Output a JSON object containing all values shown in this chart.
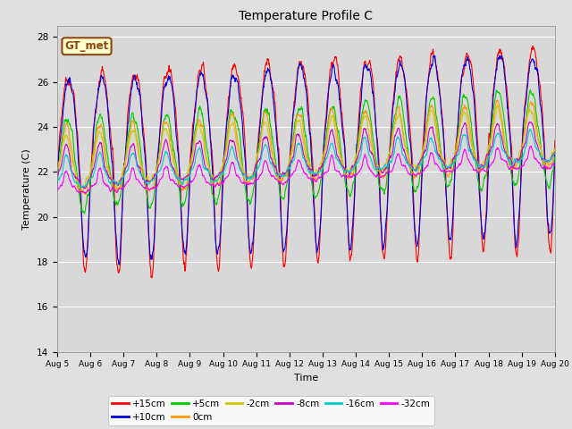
{
  "title": "Temperature Profile C",
  "xlabel": "Time",
  "ylabel": "Temperature (C)",
  "ylim": [
    14,
    28.5
  ],
  "xlim_days": [
    0,
    15
  ],
  "n_points": 1500,
  "background_color": "#e0e0e0",
  "plot_bg": "#d8d8d8",
  "series": [
    {
      "label": "+15cm",
      "color": "#ff0000",
      "amplitude": 4.5,
      "base": 21.8,
      "phase": 0.0,
      "noise": 0.5,
      "skew": 0.7
    },
    {
      "label": "+10cm",
      "color": "#0000dd",
      "amplitude": 4.0,
      "base": 22.0,
      "phase": 0.02,
      "noise": 0.45,
      "skew": 0.65
    },
    {
      "label": "+5cm",
      "color": "#00cc00",
      "amplitude": 2.0,
      "base": 22.3,
      "phase": 0.05,
      "noise": 0.35,
      "skew": 0.5
    },
    {
      "label": "0cm",
      "color": "#ff9900",
      "amplitude": 1.5,
      "base": 22.5,
      "phase": 0.08,
      "noise": 0.3,
      "skew": 0.4
    },
    {
      "label": "-2cm",
      "color": "#cccc00",
      "amplitude": 1.2,
      "base": 22.5,
      "phase": 0.1,
      "noise": 0.25,
      "skew": 0.35
    },
    {
      "label": "-8cm",
      "color": "#cc00cc",
      "amplitude": 0.9,
      "base": 22.2,
      "phase": 0.12,
      "noise": 0.2,
      "skew": 0.3
    },
    {
      "label": "-16cm",
      "color": "#00cccc",
      "amplitude": 0.7,
      "base": 22.0,
      "phase": 0.15,
      "noise": 0.18,
      "skew": 0.25
    },
    {
      "label": "-32cm",
      "color": "#ff00ff",
      "amplitude": 0.5,
      "base": 21.5,
      "phase": 0.18,
      "noise": 0.15,
      "skew": 0.2
    }
  ],
  "xtick_labels": [
    "Aug 5",
    "Aug 6",
    "Aug 7",
    "Aug 8",
    "Aug 9",
    "Aug 10",
    "Aug 11",
    "Aug 12",
    "Aug 13",
    "Aug 14",
    "Aug 15",
    "Aug 16",
    "Aug 17",
    "Aug 18",
    "Aug 19",
    "Aug 20"
  ],
  "xtick_positions": [
    0,
    1,
    2,
    3,
    4,
    5,
    6,
    7,
    8,
    9,
    10,
    11,
    12,
    13,
    14,
    15
  ],
  "ytick_labels": [
    "14",
    "16",
    "18",
    "20",
    "22",
    "24",
    "26",
    "28"
  ],
  "ytick_positions": [
    14,
    16,
    18,
    20,
    22,
    24,
    26,
    28
  ],
  "legend_box_color": "#ffffcc",
  "legend_box_edge": "#8b4513",
  "legend_text": "GT_met"
}
